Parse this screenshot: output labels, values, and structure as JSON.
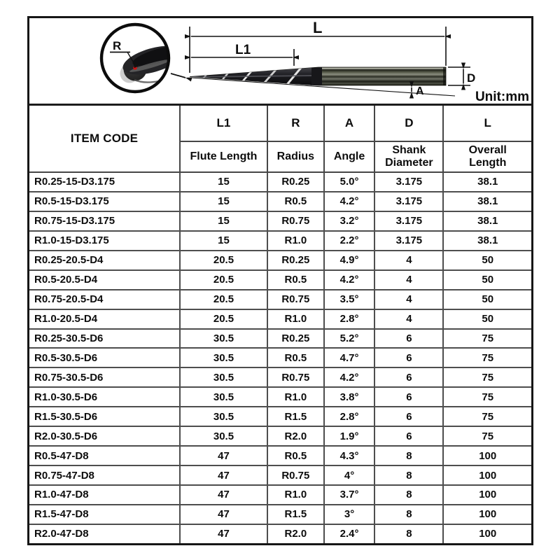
{
  "unit_note": "Unit:mm",
  "diagram": {
    "labels": {
      "L": "L",
      "L1": "L1",
      "R": "R",
      "A": "A",
      "D": "D"
    },
    "accent_red": "#cc1111",
    "line_color": "#111111"
  },
  "table": {
    "header": {
      "item_code": "ITEM CODE",
      "columns": [
        {
          "symbol": "L1",
          "name": "Flute Length"
        },
        {
          "symbol": "R",
          "name": "Radius"
        },
        {
          "symbol": "A",
          "name": "Angle"
        },
        {
          "symbol": "D",
          "name": "Shank Diameter"
        },
        {
          "symbol": "L",
          "name": "Overall Length"
        }
      ]
    },
    "row_keys": [
      "item_code",
      "flute_length",
      "radius",
      "angle",
      "shank_diameter",
      "overall_length"
    ],
    "rows": [
      {
        "item_code": "R0.25-15-D3.175",
        "flute_length": "15",
        "radius": "R0.25",
        "angle": "5.0°",
        "shank_diameter": "3.175",
        "overall_length": "38.1"
      },
      {
        "item_code": "R0.5-15-D3.175",
        "flute_length": "15",
        "radius": "R0.5",
        "angle": "4.2°",
        "shank_diameter": "3.175",
        "overall_length": "38.1"
      },
      {
        "item_code": "R0.75-15-D3.175",
        "flute_length": "15",
        "radius": "R0.75",
        "angle": "3.2°",
        "shank_diameter": "3.175",
        "overall_length": "38.1"
      },
      {
        "item_code": "R1.0-15-D3.175",
        "flute_length": "15",
        "radius": "R1.0",
        "angle": "2.2°",
        "shank_diameter": "3.175",
        "overall_length": "38.1"
      },
      {
        "item_code": "R0.25-20.5-D4",
        "flute_length": "20.5",
        "radius": "R0.25",
        "angle": "4.9°",
        "shank_diameter": "4",
        "overall_length": "50"
      },
      {
        "item_code": "R0.5-20.5-D4",
        "flute_length": "20.5",
        "radius": "R0.5",
        "angle": "4.2°",
        "shank_diameter": "4",
        "overall_length": "50"
      },
      {
        "item_code": "R0.75-20.5-D4",
        "flute_length": "20.5",
        "radius": "R0.75",
        "angle": "3.5°",
        "shank_diameter": "4",
        "overall_length": "50"
      },
      {
        "item_code": "R1.0-20.5-D4",
        "flute_length": "20.5",
        "radius": "R1.0",
        "angle": "2.8°",
        "shank_diameter": "4",
        "overall_length": "50"
      },
      {
        "item_code": "R0.25-30.5-D6",
        "flute_length": "30.5",
        "radius": "R0.25",
        "angle": "5.2°",
        "shank_diameter": "6",
        "overall_length": "75"
      },
      {
        "item_code": "R0.5-30.5-D6",
        "flute_length": "30.5",
        "radius": "R0.5",
        "angle": "4.7°",
        "shank_diameter": "6",
        "overall_length": "75"
      },
      {
        "item_code": "R0.75-30.5-D6",
        "flute_length": "30.5",
        "radius": "R0.75",
        "angle": "4.2°",
        "shank_diameter": "6",
        "overall_length": "75"
      },
      {
        "item_code": "R1.0-30.5-D6",
        "flute_length": "30.5",
        "radius": "R1.0",
        "angle": "3.8°",
        "shank_diameter": "6",
        "overall_length": "75"
      },
      {
        "item_code": "R1.5-30.5-D6",
        "flute_length": "30.5",
        "radius": "R1.5",
        "angle": "2.8°",
        "shank_diameter": "6",
        "overall_length": "75"
      },
      {
        "item_code": "R2.0-30.5-D6",
        "flute_length": "30.5",
        "radius": "R2.0",
        "angle": "1.9°",
        "shank_diameter": "6",
        "overall_length": "75"
      },
      {
        "item_code": "R0.5-47-D8",
        "flute_length": "47",
        "radius": "R0.5",
        "angle": "4.3°",
        "shank_diameter": "8",
        "overall_length": "100"
      },
      {
        "item_code": "R0.75-47-D8",
        "flute_length": "47",
        "radius": "R0.75",
        "angle": "4°",
        "shank_diameter": "8",
        "overall_length": "100"
      },
      {
        "item_code": "R1.0-47-D8",
        "flute_length": "47",
        "radius": "R1.0",
        "angle": "3.7°",
        "shank_diameter": "8",
        "overall_length": "100"
      },
      {
        "item_code": "R1.5-47-D8",
        "flute_length": "47",
        "radius": "R1.5",
        "angle": "3°",
        "shank_diameter": "8",
        "overall_length": "100"
      },
      {
        "item_code": "R2.0-47-D8",
        "flute_length": "47",
        "radius": "R2.0",
        "angle": "2.4°",
        "shank_diameter": "8",
        "overall_length": "100"
      }
    ]
  }
}
